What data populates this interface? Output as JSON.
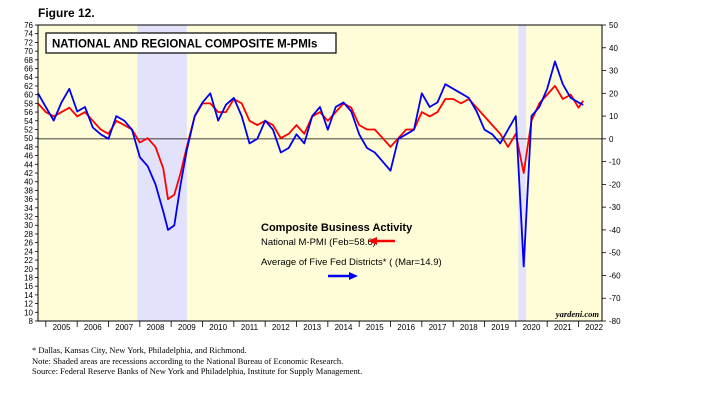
{
  "figure_label": "Figure 12.",
  "source_mark": "yardeni.com",
  "footnotes": [
    "*   Dallas, Kansas City, New York, Philadelphia, and Richmond.",
    "     Note: Shaded areas are recessions according to the National Bureau of Economic Research.",
    "     Source: Federal Reserve Banks of New York and Philadelphia, Institute for Supply Management."
  ],
  "colors": {
    "plot_bg": "#FFFDD8",
    "recession": "#E2E2FA",
    "national": "#FF0000",
    "districts": "#0000EE"
  },
  "chart_data": {
    "type": "line",
    "title": "NATIONAL AND REGIONAL COMPOSITE M-PMIs",
    "legend": {
      "heading": "Composite Business Activity",
      "entries": [
        {
          "label": "National M-PMI (Feb=58.6)",
          "color": "#FF0000",
          "arrow": "left"
        },
        {
          "label": "Average of Five Fed Districts* ( (Mar=14.9)",
          "color": "#0000EE",
          "arrow": "right"
        }
      ]
    },
    "x_range": [
      2004.75,
      2022.75
    ],
    "x_ticks": [
      "2005",
      "2006",
      "2007",
      "2008",
      "2009",
      "2010",
      "2011",
      "2012",
      "2013",
      "2014",
      "2015",
      "2016",
      "2017",
      "2018",
      "2019",
      "2020",
      "2021",
      "2022"
    ],
    "y_left": {
      "range": [
        8,
        76
      ],
      "step": 2
    },
    "y_right": {
      "range": [
        -80,
        50
      ],
      "step": 10
    },
    "recessions": [
      [
        2007.92,
        2009.5
      ],
      [
        2020.08,
        2020.33
      ]
    ],
    "reference_line": {
      "axis": "right",
      "value": 0
    },
    "series": [
      {
        "name": "National M-PMI",
        "axis": "left",
        "color": "#FF0000",
        "points": [
          [
            2004.75,
            58
          ],
          [
            2005.0,
            56
          ],
          [
            2005.25,
            55
          ],
          [
            2005.5,
            56
          ],
          [
            2005.75,
            57
          ],
          [
            2006.0,
            55
          ],
          [
            2006.25,
            56
          ],
          [
            2006.5,
            54
          ],
          [
            2006.75,
            52
          ],
          [
            2007.0,
            51
          ],
          [
            2007.25,
            54
          ],
          [
            2007.5,
            53
          ],
          [
            2007.75,
            52
          ],
          [
            2008.0,
            49
          ],
          [
            2008.25,
            50
          ],
          [
            2008.5,
            48
          ],
          [
            2008.75,
            43
          ],
          [
            2008.9,
            36
          ],
          [
            2009.1,
            37
          ],
          [
            2009.3,
            42
          ],
          [
            2009.5,
            48
          ],
          [
            2009.75,
            55
          ],
          [
            2010.0,
            58
          ],
          [
            2010.25,
            58
          ],
          [
            2010.5,
            56
          ],
          [
            2010.75,
            56
          ],
          [
            2011.0,
            59
          ],
          [
            2011.25,
            58
          ],
          [
            2011.5,
            54
          ],
          [
            2011.75,
            53
          ],
          [
            2012.0,
            54
          ],
          [
            2012.25,
            53
          ],
          [
            2012.5,
            50
          ],
          [
            2012.75,
            51
          ],
          [
            2013.0,
            53
          ],
          [
            2013.25,
            51
          ],
          [
            2013.5,
            55
          ],
          [
            2013.75,
            56
          ],
          [
            2014.0,
            54
          ],
          [
            2014.25,
            56
          ],
          [
            2014.5,
            58
          ],
          [
            2014.75,
            57
          ],
          [
            2015.0,
            53
          ],
          [
            2015.25,
            52
          ],
          [
            2015.5,
            52
          ],
          [
            2015.75,
            50
          ],
          [
            2016.0,
            48
          ],
          [
            2016.25,
            50
          ],
          [
            2016.5,
            52
          ],
          [
            2016.75,
            52
          ],
          [
            2017.0,
            56
          ],
          [
            2017.25,
            55
          ],
          [
            2017.5,
            56
          ],
          [
            2017.75,
            59
          ],
          [
            2018.0,
            59
          ],
          [
            2018.25,
            58
          ],
          [
            2018.5,
            59
          ],
          [
            2018.75,
            57
          ],
          [
            2019.0,
            55
          ],
          [
            2019.25,
            53
          ],
          [
            2019.5,
            51
          ],
          [
            2019.75,
            48
          ],
          [
            2020.0,
            51
          ],
          [
            2020.25,
            42
          ],
          [
            2020.5,
            54
          ],
          [
            2020.75,
            58
          ],
          [
            2021.0,
            60
          ],
          [
            2021.25,
            62
          ],
          [
            2021.5,
            59
          ],
          [
            2021.75,
            60
          ],
          [
            2022.0,
            57
          ],
          [
            2022.15,
            58.6
          ]
        ]
      },
      {
        "name": "Average of Five Fed Districts*",
        "axis": "right",
        "color": "#0000EE",
        "points": [
          [
            2004.75,
            20
          ],
          [
            2005.0,
            14
          ],
          [
            2005.25,
            8
          ],
          [
            2005.5,
            16
          ],
          [
            2005.75,
            22
          ],
          [
            2006.0,
            12
          ],
          [
            2006.25,
            14
          ],
          [
            2006.5,
            5
          ],
          [
            2006.75,
            2
          ],
          [
            2007.0,
            0
          ],
          [
            2007.25,
            10
          ],
          [
            2007.5,
            8
          ],
          [
            2007.75,
            4
          ],
          [
            2008.0,
            -8
          ],
          [
            2008.25,
            -12
          ],
          [
            2008.5,
            -20
          ],
          [
            2008.75,
            -32
          ],
          [
            2008.9,
            -40
          ],
          [
            2009.1,
            -38
          ],
          [
            2009.3,
            -20
          ],
          [
            2009.5,
            -5
          ],
          [
            2009.75,
            10
          ],
          [
            2010.0,
            16
          ],
          [
            2010.25,
            20
          ],
          [
            2010.5,
            8
          ],
          [
            2010.75,
            15
          ],
          [
            2011.0,
            18
          ],
          [
            2011.25,
            10
          ],
          [
            2011.5,
            -2
          ],
          [
            2011.75,
            0
          ],
          [
            2012.0,
            8
          ],
          [
            2012.25,
            4
          ],
          [
            2012.5,
            -6
          ],
          [
            2012.75,
            -4
          ],
          [
            2013.0,
            2
          ],
          [
            2013.25,
            -2
          ],
          [
            2013.5,
            10
          ],
          [
            2013.75,
            14
          ],
          [
            2014.0,
            4
          ],
          [
            2014.25,
            14
          ],
          [
            2014.5,
            16
          ],
          [
            2014.75,
            12
          ],
          [
            2015.0,
            2
          ],
          [
            2015.25,
            -4
          ],
          [
            2015.5,
            -6
          ],
          [
            2015.75,
            -10
          ],
          [
            2016.0,
            -14
          ],
          [
            2016.25,
            0
          ],
          [
            2016.5,
            2
          ],
          [
            2016.75,
            4
          ],
          [
            2017.0,
            20
          ],
          [
            2017.25,
            14
          ],
          [
            2017.5,
            16
          ],
          [
            2017.75,
            24
          ],
          [
            2018.0,
            22
          ],
          [
            2018.25,
            20
          ],
          [
            2018.5,
            18
          ],
          [
            2018.75,
            12
          ],
          [
            2019.0,
            4
          ],
          [
            2019.25,
            2
          ],
          [
            2019.5,
            -2
          ],
          [
            2019.75,
            4
          ],
          [
            2020.0,
            10
          ],
          [
            2020.25,
            -56
          ],
          [
            2020.5,
            10
          ],
          [
            2020.75,
            14
          ],
          [
            2021.0,
            22
          ],
          [
            2021.25,
            34
          ],
          [
            2021.5,
            24
          ],
          [
            2021.75,
            18
          ],
          [
            2022.0,
            16
          ],
          [
            2022.15,
            14.9
          ]
        ]
      }
    ]
  }
}
